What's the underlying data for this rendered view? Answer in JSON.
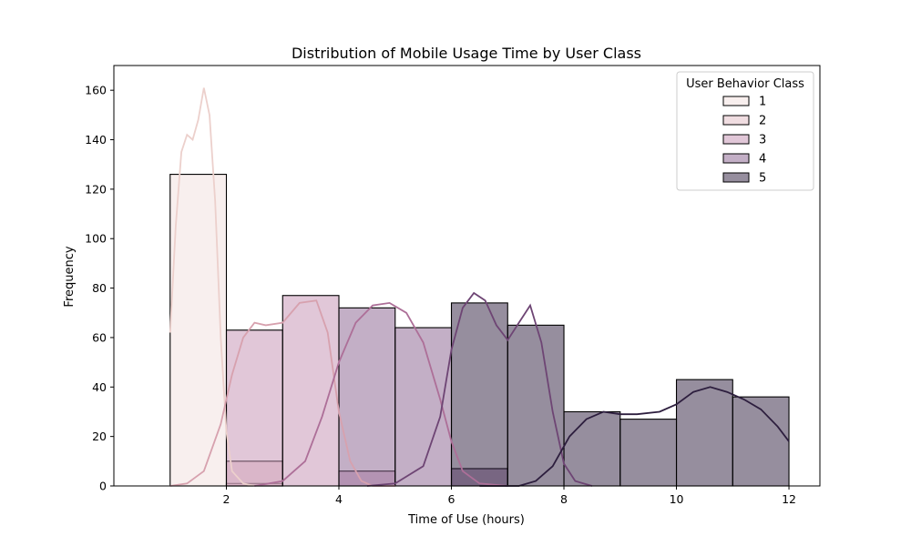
{
  "chart_data": {
    "type": "bar",
    "title": "Distribution of Mobile Usage Time by User Class",
    "xlabel": "Time of Use (hours)",
    "ylabel": "Frequency",
    "xlim": [
      0.0,
      12.55
    ],
    "ylim": [
      0,
      170
    ],
    "xticks": [
      2,
      4,
      6,
      8,
      10,
      12
    ],
    "yticks": [
      0,
      20,
      40,
      60,
      80,
      100,
      120,
      140,
      160
    ],
    "bins": [
      [
        1,
        2
      ],
      [
        2,
        3
      ],
      [
        3,
        4
      ],
      [
        4,
        5
      ],
      [
        5,
        6
      ],
      [
        6,
        7
      ],
      [
        7,
        8
      ],
      [
        8,
        9
      ],
      [
        9,
        10
      ],
      [
        10,
        11
      ],
      [
        11,
        12
      ]
    ],
    "legend": {
      "title": "User Behavior Class",
      "position": "top-right"
    },
    "series": [
      {
        "name": "1",
        "color": "#f2dfde",
        "line_color": "#ecd0cc",
        "values": [
          126,
          1,
          0,
          0,
          0,
          0,
          0,
          0,
          0,
          0,
          0
        ],
        "kde": [
          [
            1.0,
            62
          ],
          [
            1.1,
            105
          ],
          [
            1.2,
            135
          ],
          [
            1.3,
            142
          ],
          [
            1.4,
            140
          ],
          [
            1.5,
            148
          ],
          [
            1.6,
            161
          ],
          [
            1.7,
            150
          ],
          [
            1.8,
            115
          ],
          [
            1.9,
            60
          ],
          [
            2.0,
            22
          ],
          [
            2.1,
            6
          ],
          [
            2.3,
            1
          ],
          [
            2.5,
            0
          ]
        ]
      },
      {
        "name": "2",
        "color": "#e1bbc4",
        "line_color": "#d7a1ae",
        "values": [
          0,
          10,
          0,
          0,
          0,
          0,
          0,
          0,
          0,
          0,
          0
        ],
        "kde": [
          [
            1.0,
            0
          ],
          [
            1.3,
            1
          ],
          [
            1.6,
            6
          ],
          [
            1.9,
            25
          ],
          [
            2.1,
            45
          ],
          [
            2.3,
            60
          ],
          [
            2.5,
            66
          ],
          [
            2.7,
            65
          ],
          [
            3.0,
            66
          ],
          [
            3.3,
            74
          ],
          [
            3.6,
            75
          ],
          [
            3.8,
            62
          ],
          [
            4.0,
            30
          ],
          [
            4.2,
            10
          ],
          [
            4.4,
            2
          ],
          [
            4.6,
            0
          ],
          [
            5.0,
            0
          ]
        ]
      },
      {
        "name": "3",
        "color": "#c490b2",
        "line_color": "#ad6f98",
        "values": [
          0,
          63,
          77,
          6,
          0,
          0,
          0,
          0,
          0,
          0,
          0
        ],
        "kde": [
          [
            2.5,
            0
          ],
          [
            3.0,
            2
          ],
          [
            3.4,
            10
          ],
          [
            3.7,
            28
          ],
          [
            4.0,
            50
          ],
          [
            4.3,
            66
          ],
          [
            4.6,
            73
          ],
          [
            4.9,
            74
          ],
          [
            5.2,
            70
          ],
          [
            5.5,
            58
          ],
          [
            5.8,
            35
          ],
          [
            6.0,
            18
          ],
          [
            6.2,
            6
          ],
          [
            6.5,
            1
          ],
          [
            7.0,
            0
          ]
        ]
      },
      {
        "name": "4",
        "color": "#875f8e",
        "line_color": "#6e4574",
        "values": [
          0,
          0,
          0,
          72,
          64,
          7,
          0,
          0,
          0,
          0,
          0
        ],
        "kde": [
          [
            4.5,
            0
          ],
          [
            5.0,
            1
          ],
          [
            5.5,
            8
          ],
          [
            5.8,
            28
          ],
          [
            6.0,
            55
          ],
          [
            6.2,
            72
          ],
          [
            6.4,
            78
          ],
          [
            6.6,
            75
          ],
          [
            6.8,
            65
          ],
          [
            7.0,
            59
          ],
          [
            7.2,
            66
          ],
          [
            7.4,
            73
          ],
          [
            7.6,
            58
          ],
          [
            7.8,
            30
          ],
          [
            8.0,
            9
          ],
          [
            8.2,
            2
          ],
          [
            8.5,
            0
          ]
        ]
      },
      {
        "name": "5",
        "color": "#2d1e3e",
        "line_color": "#2d1e3e",
        "values": [
          0,
          0,
          0,
          0,
          0,
          74,
          65,
          30,
          27,
          43,
          36
        ],
        "kde": [
          [
            6.5,
            0
          ],
          [
            7.2,
            0
          ],
          [
            7.5,
            2
          ],
          [
            7.8,
            8
          ],
          [
            8.1,
            20
          ],
          [
            8.4,
            27
          ],
          [
            8.7,
            30
          ],
          [
            9.0,
            29
          ],
          [
            9.3,
            29
          ],
          [
            9.7,
            30
          ],
          [
            10.0,
            33
          ],
          [
            10.3,
            38
          ],
          [
            10.6,
            40
          ],
          [
            10.9,
            38
          ],
          [
            11.2,
            35
          ],
          [
            11.5,
            31
          ],
          [
            11.8,
            24
          ],
          [
            12.0,
            18
          ]
        ]
      }
    ]
  }
}
